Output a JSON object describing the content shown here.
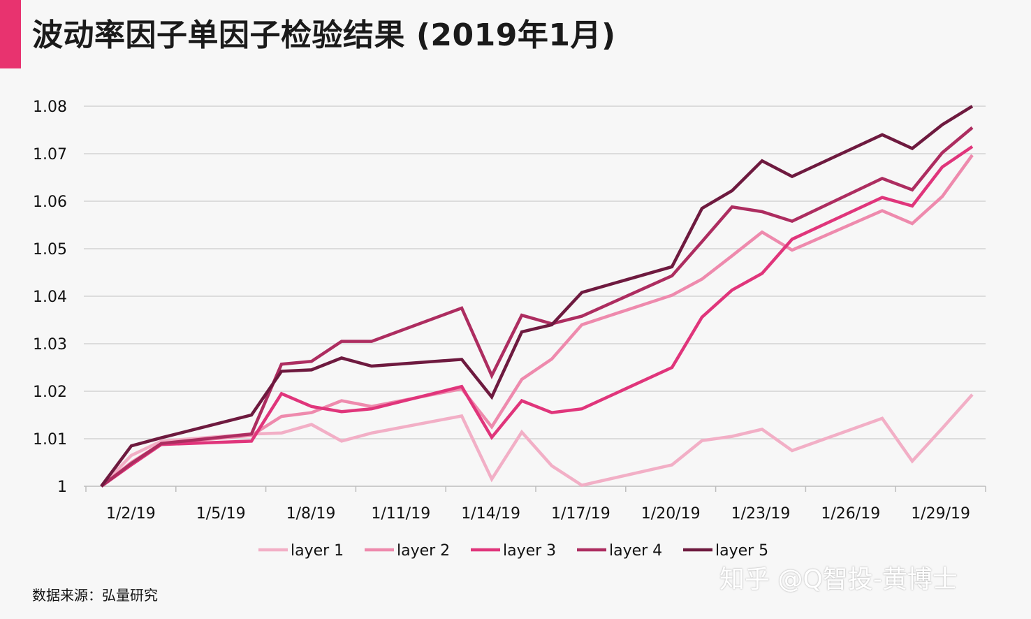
{
  "title": "波动率因子单因子检验结果 (2019年1月)",
  "source": "数据来源：弘量研究",
  "watermark": "知乎 @Q智投-黄博士",
  "colors": {
    "accent": "#e8336f",
    "layer1": "#f2afc6",
    "layer2": "#ee8aad",
    "layer3": "#e0357b",
    "layer4": "#ad2d60",
    "layer5": "#6e1a3f",
    "grid": "#d4d4d4"
  },
  "chart_data": {
    "type": "line",
    "title": "波动率因子单因子检验结果 (2019年1月)",
    "xlabel": "",
    "ylabel": "",
    "ylim": [
      1,
      1.08
    ],
    "yticks": [
      "1",
      "1.01",
      "1.02",
      "1.03",
      "1.04",
      "1.05",
      "1.06",
      "1.07",
      "1.08"
    ],
    "xtick_labels": [
      "1/2/19",
      "1/5/19",
      "1/8/19",
      "1/11/19",
      "1/14/19",
      "1/17/19",
      "1/20/19",
      "1/23/19",
      "1/26/19",
      "1/29/19"
    ],
    "grid": true,
    "legend_position": "bottom",
    "x": [
      "1/2/19",
      "1/3/19",
      "1/4/19",
      "1/7/19",
      "1/8/19",
      "1/9/19",
      "1/10/19",
      "1/11/19",
      "1/14/19",
      "1/15/19",
      "1/16/19",
      "1/17/19",
      "1/18/19",
      "1/21/19",
      "1/22/19",
      "1/23/19",
      "1/24/19",
      "1/25/19",
      "1/28/19",
      "1/29/19",
      "1/30/19",
      "1/31/19"
    ],
    "series": [
      {
        "name": "layer 1",
        "color_key": "layer1",
        "values": [
          1.0,
          1.0065,
          1.0095,
          1.011,
          1.0112,
          1.013,
          1.0095,
          1.0112,
          1.0148,
          1.0015,
          1.0114,
          1.0043,
          1.0002,
          1.0045,
          1.0096,
          1.0105,
          1.012,
          1.0075,
          1.0143,
          1.0053,
          1.0122,
          1.0193
        ]
      },
      {
        "name": "layer 2",
        "color_key": "layer2",
        "values": [
          1.0,
          1.005,
          1.009,
          1.0107,
          1.0147,
          1.0155,
          1.018,
          1.0168,
          1.0205,
          1.0125,
          1.0225,
          1.0268,
          1.034,
          1.0402,
          1.0436,
          1.0485,
          1.0535,
          1.0497,
          1.058,
          1.0553,
          1.061,
          1.0697
        ]
      },
      {
        "name": "layer 3",
        "color_key": "layer3",
        "values": [
          1.0,
          1.0045,
          1.0088,
          1.0095,
          1.0195,
          1.0168,
          1.0157,
          1.0163,
          1.021,
          1.0103,
          1.018,
          1.0155,
          1.0163,
          1.025,
          1.0356,
          1.0413,
          1.0448,
          1.052,
          1.0608,
          1.059,
          1.0672,
          1.0715
        ]
      },
      {
        "name": "layer 4",
        "color_key": "layer4",
        "values": [
          1.0,
          1.0048,
          1.009,
          1.011,
          1.0257,
          1.0263,
          1.0305,
          1.0305,
          1.0375,
          1.0233,
          1.036,
          1.0342,
          1.0358,
          1.0443,
          1.0515,
          1.0588,
          1.0578,
          1.0558,
          1.0648,
          1.0624,
          1.0702,
          1.0755
        ]
      },
      {
        "name": "layer 5",
        "color_key": "layer5",
        "values": [
          1.0,
          1.0085,
          1.0102,
          1.015,
          1.0242,
          1.0245,
          1.027,
          1.0253,
          1.0267,
          1.0188,
          1.0325,
          1.034,
          1.0408,
          1.0462,
          1.0585,
          1.0622,
          1.0685,
          1.0652,
          1.074,
          1.0711,
          1.0761,
          1.08
        ]
      }
    ]
  }
}
